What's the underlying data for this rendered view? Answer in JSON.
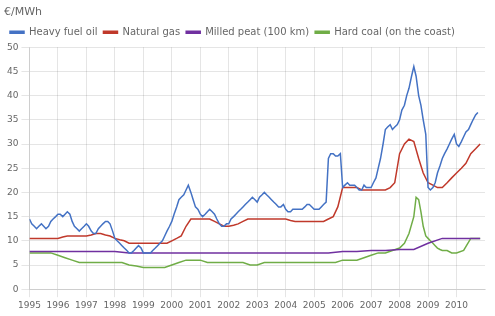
{
  "chart_data": {
    "type": "line",
    "title": "€/MWh",
    "xlim": [
      1995.0,
      2011.0
    ],
    "xticks": [
      1995,
      1996,
      1997,
      1998,
      1999,
      2000,
      2001,
      2002,
      2003,
      2004,
      2005,
      2006,
      2007,
      2008,
      2009,
      2010
    ],
    "ylim": [
      0,
      50
    ],
    "yticks": [
      0,
      5,
      10,
      15,
      20,
      25,
      30,
      35,
      40,
      45,
      50
    ],
    "grid": true,
    "legend": "upper left",
    "series": [
      {
        "name": "Heavy fuel oil",
        "color": "#4472c4",
        "x": [
          1995.0,
          1995.08,
          1995.17,
          1995.25,
          1995.33,
          1995.42,
          1995.5,
          1995.58,
          1995.67,
          1995.75,
          1995.83,
          1995.92,
          1996.0,
          1996.08,
          1996.17,
          1996.25,
          1996.33,
          1996.42,
          1996.5,
          1996.58,
          1996.67,
          1996.75,
          1996.83,
          1996.92,
          1997.0,
          1997.08,
          1997.17,
          1997.25,
          1997.33,
          1997.42,
          1997.5,
          1997.58,
          1997.67,
          1997.75,
          1997.83,
          1997.92,
          1998.0,
          1998.08,
          1998.17,
          1998.25,
          1998.33,
          1998.42,
          1998.5,
          1998.58,
          1998.67,
          1998.75,
          1998.83,
          1998.92,
          1999.0,
          1999.08,
          1999.17,
          1999.25,
          1999.33,
          1999.42,
          1999.5,
          1999.58,
          1999.67,
          1999.75,
          1999.83,
          1999.92,
          2000.0,
          2000.08,
          2000.17,
          2000.25,
          2000.33,
          2000.42,
          2000.5,
          2000.58,
          2000.67,
          2000.75,
          2000.83,
          2000.92,
          2001.0,
          2001.08,
          2001.17,
          2001.25,
          2001.33,
          2001.42,
          2001.5,
          2001.58,
          2001.67,
          2001.75,
          2001.83,
          2001.92,
          2002.0,
          2002.08,
          2002.17,
          2002.25,
          2002.33,
          2002.42,
          2002.5,
          2002.58,
          2002.67,
          2002.75,
          2002.83,
          2002.92,
          2003.0,
          2003.08,
          2003.17,
          2003.25,
          2003.33,
          2003.42,
          2003.5,
          2003.58,
          2003.67,
          2003.75,
          2003.83,
          2003.92,
          2004.0,
          2004.08,
          2004.17,
          2004.25,
          2004.33,
          2004.42,
          2004.5,
          2004.58,
          2004.67,
          2004.75,
          2004.83,
          2004.92,
          2005.0,
          2005.08,
          2005.17,
          2005.25,
          2005.33,
          2005.42,
          2005.5,
          2005.58,
          2005.67,
          2005.75,
          2005.83,
          2005.92,
          2006.0,
          2006.08,
          2006.17,
          2006.25,
          2006.33,
          2006.42,
          2006.5,
          2006.58,
          2006.67,
          2006.75,
          2006.83,
          2006.92,
          2007.0,
          2007.08,
          2007.17,
          2007.25,
          2007.33,
          2007.42,
          2007.5,
          2007.58,
          2007.67,
          2007.75,
          2007.83,
          2007.92,
          2008.0,
          2008.08,
          2008.17,
          2008.25,
          2008.33,
          2008.42,
          2008.5,
          2008.58,
          2008.67,
          2008.75,
          2008.83,
          2008.92,
          2009.0,
          2009.08,
          2009.17,
          2009.25,
          2009.33,
          2009.42,
          2009.5,
          2009.58,
          2009.67,
          2009.75,
          2009.83,
          2009.92,
          2010.0,
          2010.08,
          2010.17,
          2010.25,
          2010.33,
          2010.42,
          2010.5,
          2010.58,
          2010.67,
          2010.75
        ],
        "values": [
          14.5,
          13.5,
          13.0,
          12.5,
          13.0,
          13.5,
          13.0,
          12.5,
          13.0,
          14.0,
          14.5,
          15.0,
          15.5,
          15.5,
          15.0,
          15.5,
          16.0,
          15.5,
          14.0,
          13.0,
          12.5,
          12.0,
          12.5,
          13.0,
          13.5,
          13.0,
          12.0,
          11.5,
          11.5,
          12.5,
          13.0,
          13.5,
          14.0,
          14.0,
          13.5,
          12.0,
          10.5,
          10.0,
          9.5,
          9.0,
          8.5,
          8.0,
          7.5,
          7.5,
          8.0,
          8.5,
          9.0,
          8.5,
          7.5,
          7.5,
          7.5,
          7.5,
          8.0,
          8.5,
          9.0,
          9.5,
          10.0,
          11.0,
          12.0,
          13.0,
          14.0,
          15.5,
          17.0,
          18.5,
          19.0,
          19.5,
          20.5,
          21.5,
          20.0,
          18.5,
          17.0,
          16.5,
          15.5,
          15.0,
          15.5,
          16.0,
          16.5,
          16.0,
          15.5,
          14.5,
          13.5,
          13.0,
          13.0,
          13.5,
          13.5,
          14.5,
          15.0,
          15.5,
          16.0,
          16.5,
          17.0,
          17.5,
          18.0,
          18.5,
          19.0,
          18.5,
          18.0,
          19.0,
          19.5,
          20.0,
          19.5,
          19.0,
          18.5,
          18.0,
          17.5,
          17.0,
          17.0,
          17.5,
          16.5,
          16.0,
          16.0,
          16.5,
          16.5,
          16.5,
          16.5,
          16.5,
          17.0,
          17.5,
          17.5,
          17.0,
          16.5,
          16.5,
          16.5,
          17.0,
          17.5,
          18.0,
          27.0,
          28.0,
          28.0,
          27.5,
          27.5,
          28.0,
          21.0,
          21.5,
          22.0,
          21.5,
          21.5,
          21.5,
          21.0,
          20.5,
          20.5,
          21.5,
          21.0,
          21.0,
          21.0,
          22.0,
          23.0,
          25.0,
          27.0,
          30.0,
          33.0,
          33.5,
          34.0,
          33.0,
          33.5,
          34.0,
          35.0,
          37.0,
          38.0,
          40.0,
          41.5,
          44.0,
          46.0,
          44.0,
          40.0,
          38.0,
          35.0,
          32.0,
          21.0,
          20.5,
          21.0,
          22.0,
          24.0,
          25.5,
          27.0,
          28.0,
          29.0,
          30.0,
          31.0,
          32.0,
          30.0,
          29.5,
          30.5,
          31.5,
          32.5,
          33.0,
          34.0,
          35.0,
          36.0,
          36.5
        ]
      },
      {
        "name": "Natural gas",
        "color": "#c0392b",
        "x": [
          1995.0,
          1995.17,
          1995.33,
          1995.5,
          1995.67,
          1995.83,
          1996.0,
          1996.17,
          1996.33,
          1996.5,
          1996.67,
          1996.83,
          1997.0,
          1997.17,
          1997.33,
          1997.5,
          1997.67,
          1997.83,
          1998.0,
          1998.17,
          1998.33,
          1998.5,
          1998.67,
          1998.83,
          1999.0,
          1999.17,
          1999.33,
          1999.5,
          1999.67,
          1999.83,
          2000.0,
          2000.17,
          2000.33,
          2000.5,
          2000.67,
          2000.83,
          2001.0,
          2001.17,
          2001.33,
          2001.5,
          2001.67,
          2001.83,
          2002.0,
          2002.17,
          2002.33,
          2002.5,
          2002.67,
          2002.83,
          2003.0,
          2003.17,
          2003.33,
          2003.5,
          2003.67,
          2003.83,
          2004.0,
          2004.17,
          2004.33,
          2004.5,
          2004.67,
          2004.83,
          2005.0,
          2005.17,
          2005.33,
          2005.5,
          2005.67,
          2005.83,
          2006.0,
          2006.17,
          2006.33,
          2006.5,
          2006.67,
          2006.83,
          2007.0,
          2007.17,
          2007.33,
          2007.5,
          2007.67,
          2007.83,
          2008.0,
          2008.17,
          2008.33,
          2008.5,
          2008.67,
          2008.83,
          2009.0,
          2009.17,
          2009.33,
          2009.5,
          2009.67,
          2009.83,
          2010.0,
          2010.17,
          2010.33,
          2010.5,
          2010.67,
          2010.83
        ],
        "values": [
          10.5,
          10.5,
          10.5,
          10.5,
          10.5,
          10.5,
          10.5,
          10.8,
          11.0,
          11.0,
          11.0,
          11.0,
          11.0,
          11.2,
          11.5,
          11.5,
          11.2,
          11.0,
          10.5,
          10.2,
          10.0,
          9.5,
          9.5,
          9.5,
          9.5,
          9.5,
          9.5,
          9.5,
          9.5,
          9.5,
          10.0,
          10.5,
          11.0,
          13.0,
          14.5,
          14.5,
          14.5,
          14.5,
          14.5,
          14.0,
          13.5,
          13.0,
          13.0,
          13.2,
          13.5,
          14.0,
          14.5,
          14.5,
          14.5,
          14.5,
          14.5,
          14.5,
          14.5,
          14.5,
          14.5,
          14.2,
          14.0,
          14.0,
          14.0,
          14.0,
          14.0,
          14.0,
          14.0,
          14.5,
          15.0,
          17.0,
          21.0,
          21.0,
          21.0,
          21.0,
          20.5,
          20.5,
          20.5,
          20.5,
          20.5,
          20.5,
          21.0,
          22.0,
          28.0,
          30.0,
          31.0,
          30.5,
          27.0,
          24.0,
          22.0,
          21.5,
          21.0,
          21.0,
          22.0,
          23.0,
          24.0,
          25.0,
          26.0,
          28.0,
          29.0,
          30.0
        ]
      },
      {
        "name": "Milled peat (100 km)",
        "color": "#7030a0",
        "x": [
          1995.0,
          1995.5,
          1996.0,
          1996.5,
          1997.0,
          1997.5,
          1998.0,
          1998.5,
          1999.0,
          1999.5,
          2000.0,
          2000.5,
          2001.0,
          2001.5,
          2002.0,
          2002.5,
          2003.0,
          2003.5,
          2004.0,
          2004.5,
          2005.0,
          2005.5,
          2006.0,
          2006.5,
          2007.0,
          2007.5,
          2008.0,
          2008.5,
          2009.0,
          2009.5,
          2010.0,
          2010.5,
          2010.83
        ],
        "values": [
          7.8,
          7.8,
          7.8,
          7.8,
          7.8,
          7.8,
          7.8,
          7.5,
          7.5,
          7.5,
          7.5,
          7.5,
          7.5,
          7.5,
          7.5,
          7.5,
          7.5,
          7.5,
          7.5,
          7.5,
          7.5,
          7.5,
          7.8,
          7.8,
          8.0,
          8.0,
          8.2,
          8.2,
          9.5,
          10.5,
          10.5,
          10.5,
          10.5
        ]
      },
      {
        "name": "Hard coal (on the coast)",
        "color": "#70ad47",
        "x": [
          1995.0,
          1995.25,
          1995.5,
          1995.75,
          1996.0,
          1996.25,
          1996.5,
          1996.75,
          1997.0,
          1997.25,
          1997.5,
          1997.75,
          1998.0,
          1998.25,
          1998.5,
          1998.75,
          1999.0,
          1999.25,
          1999.5,
          1999.75,
          2000.0,
          2000.25,
          2000.5,
          2000.75,
          2001.0,
          2001.25,
          2001.5,
          2001.75,
          2002.0,
          2002.25,
          2002.5,
          2002.75,
          2003.0,
          2003.25,
          2003.5,
          2003.75,
          2004.0,
          2004.25,
          2004.5,
          2004.75,
          2005.0,
          2005.25,
          2005.5,
          2005.75,
          2006.0,
          2006.25,
          2006.5,
          2006.75,
          2007.0,
          2007.25,
          2007.5,
          2007.75,
          2008.0,
          2008.17,
          2008.33,
          2008.5,
          2008.58,
          2008.67,
          2008.75,
          2008.83,
          2008.92,
          2009.0,
          2009.08,
          2009.17,
          2009.25,
          2009.33,
          2009.42,
          2009.5,
          2009.67,
          2009.83,
          2009.92,
          2010.0,
          2010.25,
          2010.5,
          2010.75,
          2010.83
        ],
        "values": [
          7.5,
          7.5,
          7.5,
          7.5,
          7.0,
          6.5,
          6.0,
          5.5,
          5.5,
          5.5,
          5.5,
          5.5,
          5.5,
          5.5,
          5.0,
          4.8,
          4.5,
          4.5,
          4.5,
          4.5,
          5.0,
          5.5,
          6.0,
          6.0,
          6.0,
          5.5,
          5.5,
          5.5,
          5.5,
          5.5,
          5.5,
          5.0,
          5.0,
          5.5,
          5.5,
          5.5,
          5.5,
          5.5,
          5.5,
          5.5,
          5.5,
          5.5,
          5.5,
          5.5,
          6.0,
          6.0,
          6.0,
          6.5,
          7.0,
          7.5,
          7.5,
          8.0,
          8.5,
          9.5,
          11.5,
          15.0,
          19.0,
          18.5,
          16.0,
          13.0,
          11.0,
          10.5,
          10.0,
          9.5,
          9.0,
          8.5,
          8.2,
          8.0,
          8.0,
          7.5,
          7.5,
          7.5,
          8.0,
          10.5,
          10.5,
          10.5
        ]
      }
    ]
  }
}
